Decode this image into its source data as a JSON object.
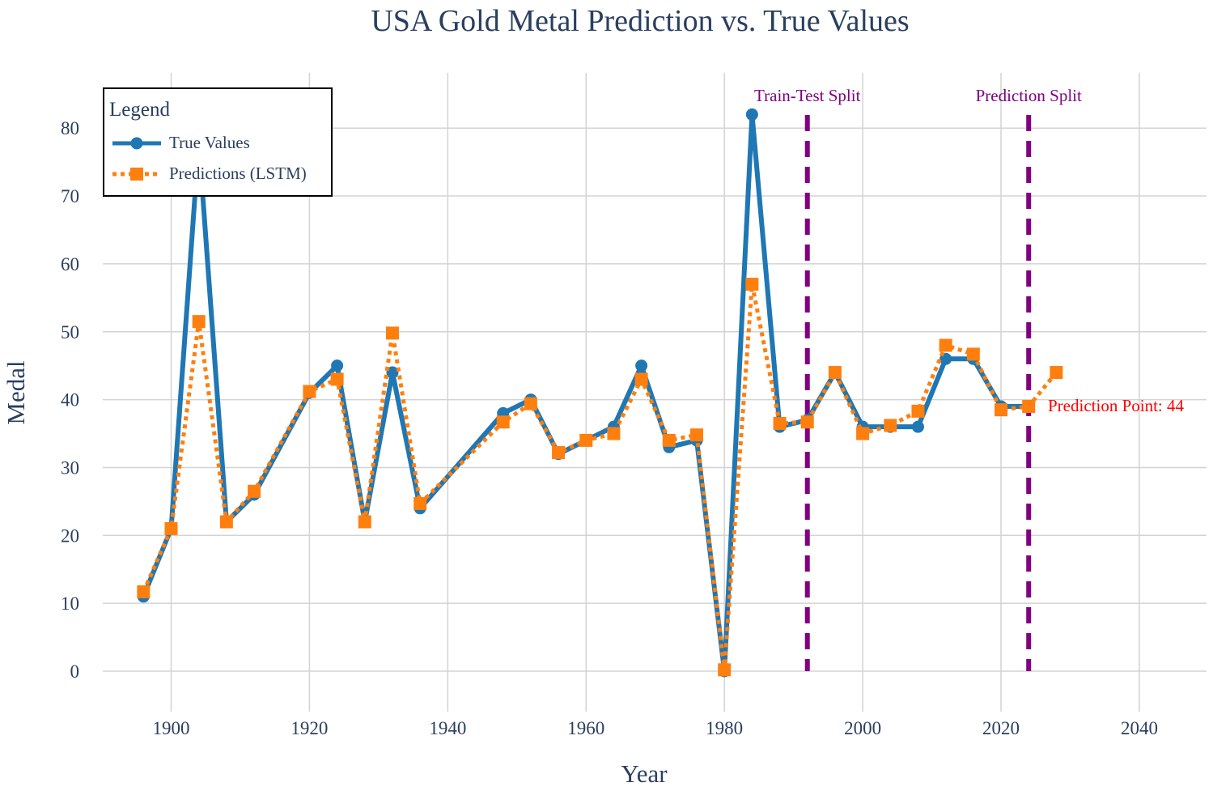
{
  "chart_data": {
    "type": "line",
    "title": "USA Gold Metal Prediction vs. True Values",
    "xlabel": "Year",
    "ylabel": "Medal",
    "xlim": [
      1880,
      1500
    ],
    "xrange": [
      1880,
      2050
    ],
    "ylim": [
      -5,
      88
    ],
    "xticks": [
      1900,
      1920,
      1940,
      1960,
      1980,
      2000,
      2020,
      2040
    ],
    "yticks": [
      0,
      10,
      20,
      30,
      40,
      50,
      60,
      70,
      80
    ],
    "grid": true,
    "legend": {
      "title": "Legend",
      "placement": "top-left"
    },
    "series": [
      {
        "name": "True Values",
        "color": "#1f77b4",
        "style": "solid",
        "marker": "circle",
        "x": [
          1896,
          1900,
          1904,
          1908,
          1912,
          1920,
          1924,
          1928,
          1932,
          1936,
          1948,
          1952,
          1956,
          1960,
          1964,
          1968,
          1972,
          1976,
          1980,
          1984,
          1988,
          1992,
          1996,
          2000,
          2004,
          2008,
          2012,
          2016,
          2020,
          2024
        ],
        "values": [
          11,
          21,
          78,
          22,
          26,
          41,
          45,
          22,
          44,
          24,
          38,
          40,
          32,
          34,
          36,
          45,
          33,
          34,
          0,
          82,
          36,
          37,
          44,
          36,
          36,
          36,
          46,
          46,
          39,
          39
        ]
      },
      {
        "name": "Predictions (LSTM)",
        "color": "#ff7f0e",
        "style": "dotted",
        "marker": "square",
        "x": [
          1896,
          1900,
          1904,
          1908,
          1912,
          1920,
          1924,
          1928,
          1932,
          1936,
          1948,
          1952,
          1956,
          1960,
          1964,
          1968,
          1972,
          1976,
          1980,
          1984,
          1988,
          1992,
          1996,
          2000,
          2004,
          2008,
          2012,
          2016,
          2020,
          2024,
          2028
        ],
        "values": [
          11.7,
          21,
          51.5,
          22,
          26.5,
          41.2,
          43,
          22,
          49.8,
          24.7,
          36.7,
          39.4,
          32.2,
          34,
          35,
          43,
          34,
          34.8,
          0.2,
          57,
          36.5,
          36.7,
          44,
          35,
          36.2,
          38.3,
          48,
          46.7,
          38.5,
          39,
          44
        ]
      }
    ],
    "vlines": [
      {
        "x": 1992,
        "label": "Train-Test Split",
        "color": "#800080"
      },
      {
        "x": 2024,
        "label": "Prediction Split",
        "color": "#800080"
      }
    ],
    "annotation": {
      "text": "Prediction Point: 44",
      "x": 2028,
      "y": 44,
      "color": "#ff0000"
    }
  }
}
